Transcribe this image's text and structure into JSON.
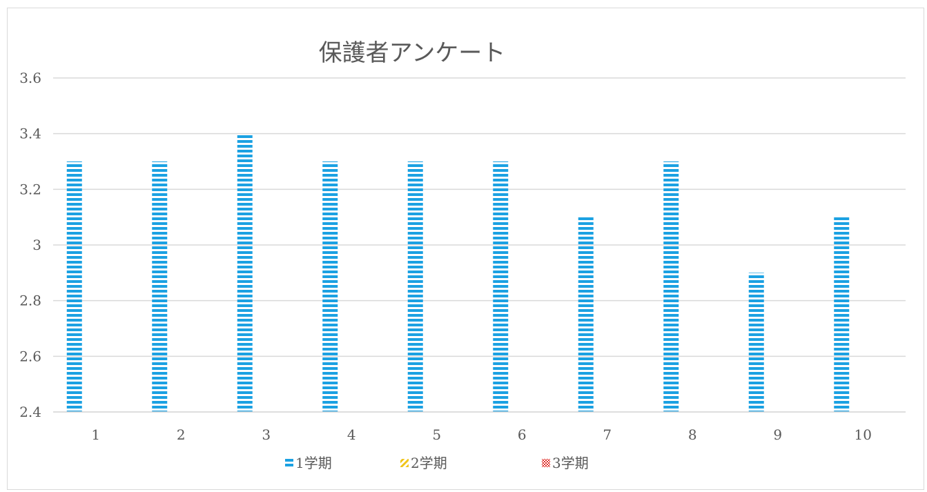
{
  "chart_data": {
    "type": "bar",
    "title": "保護者アンケート",
    "categories": [
      "1",
      "2",
      "3",
      "4",
      "5",
      "6",
      "7",
      "8",
      "9",
      "10"
    ],
    "series": [
      {
        "name": "1学期",
        "values": [
          3.3,
          3.3,
          3.4,
          3.3,
          3.3,
          3.3,
          3.1,
          3.3,
          2.9,
          3.1
        ],
        "color": "#1ba1e2",
        "pattern": "horizontal-stripes"
      },
      {
        "name": "2学期",
        "values": [
          null,
          null,
          null,
          null,
          null,
          null,
          null,
          null,
          null,
          null
        ],
        "color": "#f0c419",
        "pattern": "diagonal-stripes"
      },
      {
        "name": "3学期",
        "values": [
          null,
          null,
          null,
          null,
          null,
          null,
          null,
          null,
          null,
          null
        ],
        "color": "#e0302a",
        "pattern": "checker"
      }
    ],
    "ylim": [
      2.4,
      3.6
    ],
    "yticks": [
      "2.4",
      "2.6",
      "2.8",
      "3",
      "3.2",
      "3.4",
      "3.6"
    ],
    "grid": true,
    "legend": "bottom"
  }
}
